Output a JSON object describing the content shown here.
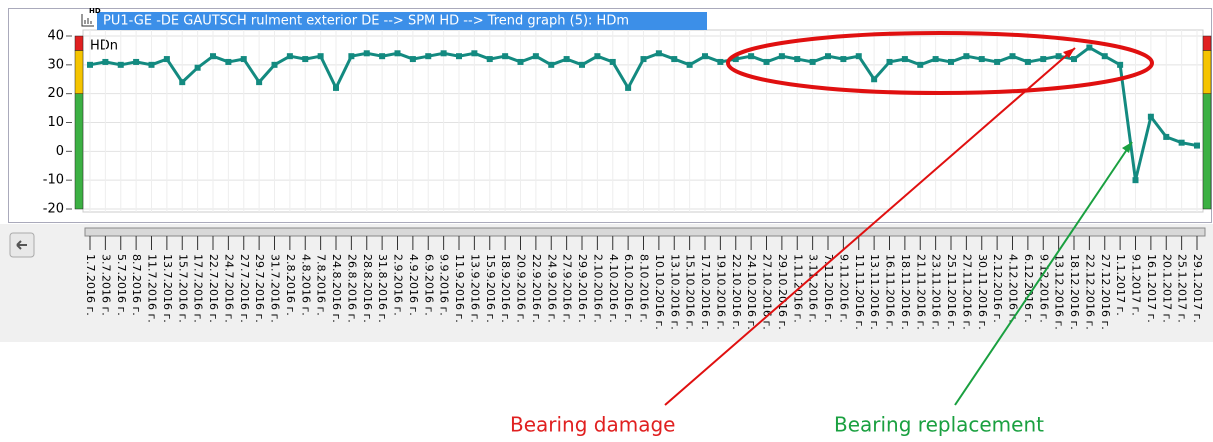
{
  "chart_data": {
    "type": "line",
    "title": "PU1-GE   -DE GAUTSCH rulment exterior DE --> SPM HD --> Trend graph (5): HDm",
    "icon_text": "HD",
    "y_label": "HDn",
    "categories": [
      "1.7.2016 г.",
      "3.7.2016 г.",
      "5.7.2016 г.",
      "8.7.2016 г.",
      "11.7.2016 г.",
      "13.7.2016 г.",
      "15.7.2016 г.",
      "17.7.2016 г.",
      "22.7.2016 г.",
      "24.7.2016 г.",
      "27.7.2016 г.",
      "29.7.2016 г.",
      "31.7.2016 г.",
      "2.8.2016 г.",
      "4.8.2016 г.",
      "7.8.2016 г.",
      "24.8.2016 г.",
      "26.8.2016 г.",
      "28.8.2016 г.",
      "31.8.2016 г.",
      "2.9.2016 г.",
      "4.9.2016 г.",
      "6.9.2016 г.",
      "9.9.2016 г.",
      "11.9.2016 г.",
      "13.9.2016 г.",
      "15.9.2016 г.",
      "18.9.2016 г.",
      "20.9.2016 г.",
      "22.9.2016 г.",
      "24.9.2016 г.",
      "27.9.2016 г.",
      "29.9.2016 г.",
      "2.10.2016 г.",
      "4.10.2016 г.",
      "6.10.2016 г.",
      "8.10.2016 г.",
      "10.10.2016 г.",
      "13.10.2016 г.",
      "15.10.2016 г.",
      "17.10.2016 г.",
      "19.10.2016 г.",
      "22.10.2016 г.",
      "24.10.2016 г.",
      "27.10.2016 г.",
      "29.10.2016 г.",
      "1.11.2016 г.",
      "3.11.2016 г.",
      "7.11.2016 г.",
      "9.11.2016 г.",
      "11.11.2016 г.",
      "13.11.2016 г.",
      "16.11.2016 г.",
      "18.11.2016 г.",
      "21.11.2016 г.",
      "23.11.2016 г.",
      "25.11.2016 г.",
      "27.11.2016 г.",
      "30.11.2016 г.",
      "2.12.2016 г.",
      "4.12.2016 г.",
      "6.12.2016 г.",
      "9.12.2016 г.",
      "13.12.2016 г.",
      "18.12.2016 г.",
      "22.12.2016 г.",
      "27.12.2016 г.",
      "1.1.2017 г.",
      "9.1.2017 г.",
      "16.1.2017 г.",
      "20.1.2017 г.",
      "25.1.2017 г.",
      "29.1.2017 г."
    ],
    "series": [
      {
        "name": "HDm",
        "color": "#138a80",
        "values": [
          30,
          31,
          30,
          31,
          30,
          32,
          24,
          29,
          33,
          31,
          32,
          24,
          30,
          33,
          32,
          33,
          22,
          33,
          34,
          33,
          34,
          32,
          33,
          34,
          33,
          34,
          32,
          33,
          31,
          33,
          30,
          32,
          30,
          33,
          31,
          22,
          32,
          34,
          32,
          30,
          33,
          31,
          32,
          33,
          31,
          33,
          32,
          31,
          33,
          32,
          33,
          25,
          31,
          32,
          30,
          32,
          31,
          33,
          32,
          31,
          33,
          31,
          32,
          33,
          32,
          36,
          33,
          30,
          -10,
          12,
          5,
          3,
          2
        ]
      }
    ],
    "ylim": [
      -20,
      40
    ],
    "yticks": [
      -20,
      -10,
      0,
      10,
      20,
      30,
      40
    ],
    "grid": true,
    "zones": [
      {
        "from": -20,
        "to": 20,
        "color": "#3cb043"
      },
      {
        "from": 20,
        "to": 35,
        "color": "#f5c400"
      },
      {
        "from": 35,
        "to": 40,
        "color": "#e02020"
      }
    ],
    "annotations": [
      {
        "text": "Bearing damage",
        "color": "#e02020"
      },
      {
        "text": "Bearing replacement",
        "color": "#1aa040"
      }
    ]
  }
}
